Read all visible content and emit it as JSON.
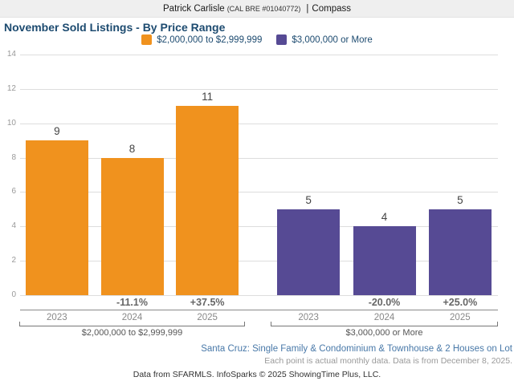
{
  "header": {
    "name": "Patrick Carlisle",
    "license": "(CAL BRE #01040772)",
    "separator": "|",
    "brokerage": "Compass"
  },
  "title": "November Sold Listings - By Price Range",
  "legend": [
    {
      "label": "$2,000,000 to $2,999,999",
      "color": "#f0921e"
    },
    {
      "label": "$3,000,000 or More",
      "color": "#564a94"
    }
  ],
  "chart_data": {
    "type": "bar",
    "title": "November Sold Listings - By Price Range",
    "ylim": [
      0,
      14
    ],
    "yticks": [
      0,
      2,
      4,
      6,
      8,
      10,
      12,
      14
    ],
    "grid": true,
    "legend_position": "top",
    "groups": [
      {
        "label": "$2,000,000 to $2,999,999",
        "color": "#f0921e",
        "categories": [
          "2023",
          "2024",
          "2025"
        ],
        "values": [
          9,
          8,
          11
        ],
        "pct_change": [
          null,
          "-11.1%",
          "+37.5%"
        ]
      },
      {
        "label": "$3,000,000 or More",
        "color": "#564a94",
        "categories": [
          "2023",
          "2024",
          "2025"
        ],
        "values": [
          5,
          4,
          5
        ],
        "pct_change": [
          null,
          "-20.0%",
          "+25.0%"
        ]
      }
    ]
  },
  "footer": {
    "region_line": "Santa Cruz: Single Family & Condominium & Townhouse & 2 Houses on Lot",
    "data_note": "Each point is actual monthly data. Data is from December 8, 2025.",
    "attribution": "Data from SFARMLS. InfoSparks © 2025 ShowingTime Plus, LLC."
  },
  "colors": {
    "title": "#1d4b70",
    "series_1": "#f0921e",
    "series_2": "#564a94",
    "gridline": "#dddddd",
    "header_background": "#efefef",
    "region_line_text": "#4878a8"
  }
}
